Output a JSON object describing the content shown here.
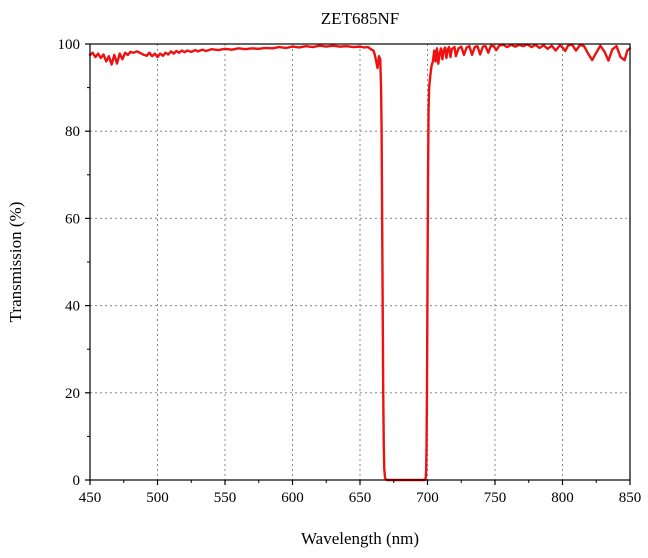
{
  "chart_data": {
    "type": "line",
    "title": "ZET685NF",
    "xlabel": "Wavelength (nm)",
    "ylabel": "Transmission (%)",
    "xlim": [
      450,
      850
    ],
    "ylim": [
      0,
      100
    ],
    "x_ticks": [
      450,
      500,
      550,
      600,
      650,
      700,
      750,
      800,
      850
    ],
    "y_ticks": [
      0,
      20,
      40,
      60,
      80,
      100
    ],
    "x_tick_labels": [
      "450",
      "500",
      "550",
      "600",
      "650",
      "700",
      "750",
      "800",
      "850"
    ],
    "y_tick_labels": [
      "0",
      "20",
      "40",
      "60",
      "80",
      "100"
    ],
    "grid": true,
    "legend": "none",
    "series": [
      {
        "color": "#ee1111",
        "points": [
          [
            450,
            97.5
          ],
          [
            452,
            98
          ],
          [
            454,
            97
          ],
          [
            456,
            97.8
          ],
          [
            458,
            96.8
          ],
          [
            460,
            97.6
          ],
          [
            462,
            96
          ],
          [
            464,
            97.2
          ],
          [
            466,
            95.3
          ],
          [
            468,
            97.5
          ],
          [
            470,
            95.5
          ],
          [
            472,
            97.8
          ],
          [
            474,
            96.5
          ],
          [
            476,
            98
          ],
          [
            478,
            97.5
          ],
          [
            480,
            98.2
          ],
          [
            482,
            98
          ],
          [
            485,
            98.3
          ],
          [
            488,
            97.8
          ],
          [
            490,
            97.5
          ],
          [
            492,
            97.3
          ],
          [
            494,
            98
          ],
          [
            496,
            97.2
          ],
          [
            498,
            97.8
          ],
          [
            500,
            97
          ],
          [
            502,
            97.8
          ],
          [
            504,
            97.3
          ],
          [
            506,
            98
          ],
          [
            508,
            97.6
          ],
          [
            510,
            98.3
          ],
          [
            512,
            97.8
          ],
          [
            514,
            98.4
          ],
          [
            516,
            98
          ],
          [
            518,
            98.5
          ],
          [
            520,
            98.1
          ],
          [
            522,
            98.5
          ],
          [
            525,
            98.2
          ],
          [
            528,
            98.6
          ],
          [
            530,
            98.3
          ],
          [
            533,
            98.7
          ],
          [
            536,
            98.4
          ],
          [
            540,
            98.8
          ],
          [
            545,
            98.6
          ],
          [
            550,
            98.9
          ],
          [
            555,
            98.7
          ],
          [
            560,
            99
          ],
          [
            565,
            98.8
          ],
          [
            570,
            99
          ],
          [
            575,
            98.9
          ],
          [
            580,
            99.1
          ],
          [
            585,
            99
          ],
          [
            590,
            99.3
          ],
          [
            595,
            99.1
          ],
          [
            600,
            99.4
          ],
          [
            605,
            99.2
          ],
          [
            610,
            99.5
          ],
          [
            615,
            99.3
          ],
          [
            620,
            99.6
          ],
          [
            625,
            99.4
          ],
          [
            630,
            99.6
          ],
          [
            635,
            99.4
          ],
          [
            640,
            99.5
          ],
          [
            645,
            99.3
          ],
          [
            650,
            99.4
          ],
          [
            653,
            99.2
          ],
          [
            656,
            99.3
          ],
          [
            658,
            98.8
          ],
          [
            660,
            98.5
          ],
          [
            661,
            97.5
          ],
          [
            662,
            96
          ],
          [
            663,
            94.5
          ],
          [
            664,
            97.2
          ],
          [
            665,
            96.5
          ],
          [
            665.6,
            90
          ],
          [
            666,
            80
          ],
          [
            666.4,
            60
          ],
          [
            666.8,
            40
          ],
          [
            667.2,
            20
          ],
          [
            667.6,
            8
          ],
          [
            668,
            2.5
          ],
          [
            668.5,
            0.6
          ],
          [
            669,
            0.2
          ],
          [
            670,
            0
          ],
          [
            680,
            0
          ],
          [
            690,
            0
          ],
          [
            698,
            0
          ],
          [
            698.6,
            0.3
          ],
          [
            699,
            2
          ],
          [
            699.3,
            8
          ],
          [
            699.6,
            20
          ],
          [
            700,
            45
          ],
          [
            700.4,
            70
          ],
          [
            700.8,
            85
          ],
          [
            701.2,
            90
          ],
          [
            702,
            92.5
          ],
          [
            703,
            95
          ],
          [
            704,
            96
          ],
          [
            705,
            98.5
          ],
          [
            706,
            96
          ],
          [
            707,
            99
          ],
          [
            708,
            95.5
          ],
          [
            709,
            97.8
          ],
          [
            710,
            99
          ],
          [
            711,
            96.5
          ],
          [
            712,
            98.5
          ],
          [
            713,
            99.2
          ],
          [
            714,
            96.8
          ],
          [
            715,
            98.8
          ],
          [
            716,
            99.3
          ],
          [
            717,
            97
          ],
          [
            718,
            98.8
          ],
          [
            720,
            99.3
          ],
          [
            721,
            97.2
          ],
          [
            723,
            99
          ],
          [
            725,
            99.4
          ],
          [
            727,
            97.5
          ],
          [
            729,
            99.2
          ],
          [
            731,
            99.5
          ],
          [
            733,
            97.5
          ],
          [
            735,
            99.3
          ],
          [
            737,
            99.5
          ],
          [
            739,
            97.6
          ],
          [
            741,
            99.4
          ],
          [
            743,
            99.5
          ],
          [
            745,
            98
          ],
          [
            747,
            99.6
          ],
          [
            749,
            99.5
          ],
          [
            751,
            98.6
          ],
          [
            753,
            99.6
          ],
          [
            756,
            99.8
          ],
          [
            759,
            99.3
          ],
          [
            762,
            99.8
          ],
          [
            765,
            99.4
          ],
          [
            768,
            99.8
          ],
          [
            771,
            99.5
          ],
          [
            774,
            99.9
          ],
          [
            777,
            99.3
          ],
          [
            780,
            99.8
          ],
          [
            783,
            99.1
          ],
          [
            786,
            99.7
          ],
          [
            789,
            98.9
          ],
          [
            792,
            99.6
          ],
          [
            795,
            98.5
          ],
          [
            798,
            99.7
          ],
          [
            800,
            99.2
          ],
          [
            802,
            98.4
          ],
          [
            804,
            99.6
          ],
          [
            807,
            99.9
          ],
          [
            810,
            98.5
          ],
          [
            813,
            99.8
          ],
          [
            816,
            99.5
          ],
          [
            819,
            97.8
          ],
          [
            822,
            96.3
          ],
          [
            825,
            98
          ],
          [
            828,
            99.6
          ],
          [
            831,
            98.3
          ],
          [
            834,
            96.2
          ],
          [
            837,
            98.8
          ],
          [
            840,
            99.5
          ],
          [
            843,
            97
          ],
          [
            846,
            96.3
          ],
          [
            848,
            98.5
          ],
          [
            850,
            99
          ]
        ]
      }
    ]
  }
}
